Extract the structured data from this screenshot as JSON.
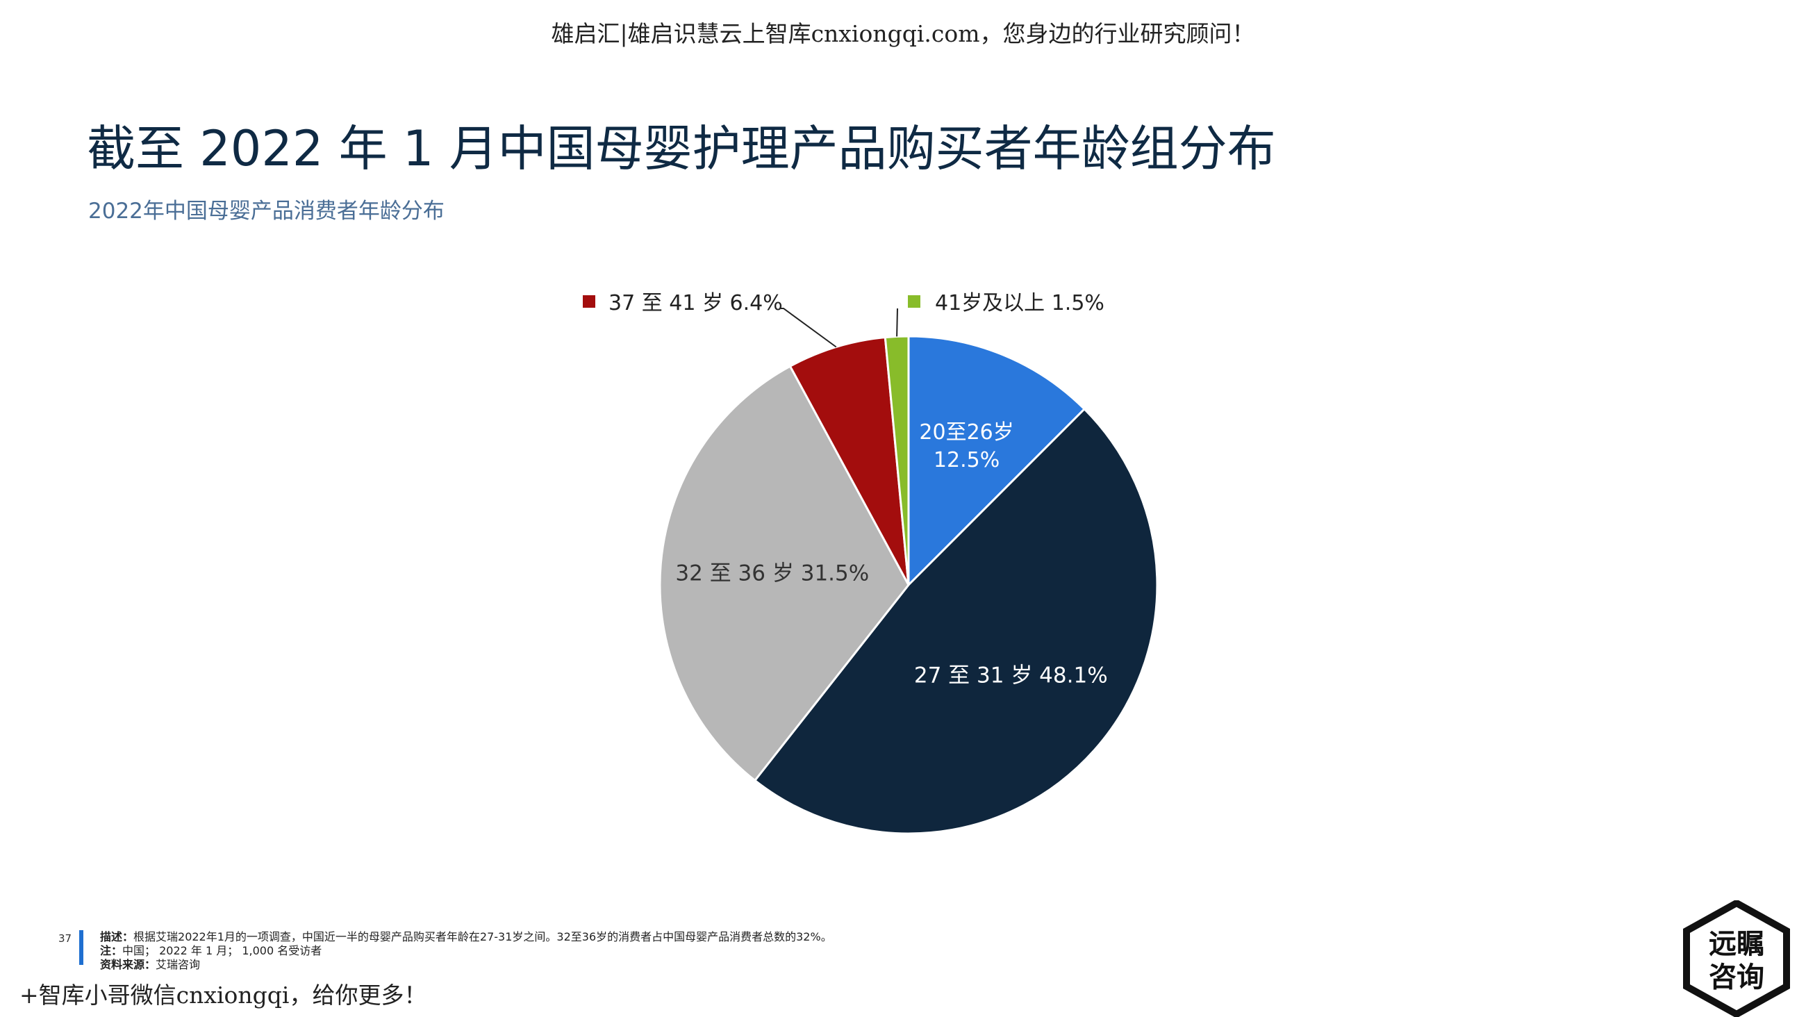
{
  "watermark_top": "雄启汇|雄启识慧云上智库cnxiongqi.com，您身边的行业研究顾问！",
  "title": "截至 2022 年 1 月中国母婴护理产品购买者年龄组分布",
  "subtitle": "2022年中国母婴产品消费者年龄分布",
  "chart_data": {
    "type": "pie",
    "slices": [
      {
        "label": "20至26岁",
        "value": 12.5,
        "value_text": "12.5%",
        "color": "#2a78dc",
        "label_position": "inside"
      },
      {
        "label": "27 至 31 岁",
        "value": 48.1,
        "value_text": "48.1%",
        "color": "#0f263d",
        "label_position": "inside"
      },
      {
        "label": "32 至 36 岁",
        "value": 31.5,
        "value_text": "31.5%",
        "color": "#b7b7b7",
        "label_position": "inside"
      },
      {
        "label": "37 至 41 岁",
        "value": 6.4,
        "value_text": "6.4%",
        "color": "#a30d0d",
        "label_position": "outside"
      },
      {
        "label": "41岁及以上",
        "value": 1.5,
        "value_text": "1.5%",
        "color": "#88bc2a",
        "label_position": "outside"
      }
    ]
  },
  "footer": {
    "page_number": "37",
    "description_label": "描述：",
    "description": "根据艾瑞2022年1月的一项调查，中国近一半的母婴产品购买者年龄在27-31岁之间。32至36岁的消费者占中国母婴产品消费者总数的32%。",
    "note_label": "注：",
    "note": "中国；  2022 年 1 月；  1,000 名受访者",
    "source_label": "资料来源：",
    "source": "艾瑞咨询"
  },
  "watermark_bottom": "+智库小哥微信cnxiongqi，给你更多！",
  "logo": {
    "line1": "远瞩",
    "line2": "咨询"
  }
}
